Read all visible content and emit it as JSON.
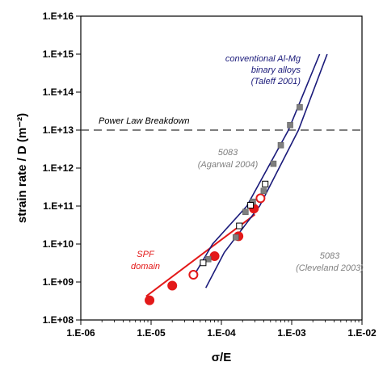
{
  "chart_data": {
    "type": "scatter",
    "title": "",
    "xlabel": "σ/E",
    "ylabel": "strain rate / D (m⁻²)",
    "x_scale": "log",
    "y_scale": "log",
    "xlim": [
      1e-06,
      0.01
    ],
    "ylim": [
      100000000.0,
      1e+16
    ],
    "x_ticks": [
      {
        "value": 1e-06,
        "label": "1.E-06"
      },
      {
        "value": 1e-05,
        "label": "1.E-05"
      },
      {
        "value": 0.0001,
        "label": "1.E-04"
      },
      {
        "value": 0.001,
        "label": "1.E-03"
      },
      {
        "value": 0.01,
        "label": "1.E-02"
      }
    ],
    "y_ticks": [
      {
        "value": 100000000.0,
        "label": "1.E+08"
      },
      {
        "value": 1000000000.0,
        "label": "1.E+09"
      },
      {
        "value": 10000000000.0,
        "label": "1.E+10"
      },
      {
        "value": 100000000000.0,
        "label": "1.E+11"
      },
      {
        "value": 1000000000000.0,
        "label": "1.E+12"
      },
      {
        "value": 10000000000000.0,
        "label": "1.E+13"
      },
      {
        "value": 100000000000000.0,
        "label": "1.E+14"
      },
      {
        "value": 1000000000000000.0,
        "label": "1.E+15"
      },
      {
        "value": 1e+16,
        "label": "1.E+16"
      }
    ],
    "grid": false,
    "colors": {
      "conventional": "#1a1a7a",
      "spf": "#e31919",
      "gray_points": "#7f7f7f",
      "breakdown": "#333333",
      "annotation_gray": "#808080"
    },
    "reference_line": {
      "label": "Power Law Breakdown",
      "y": 10000000000000.0
    },
    "series": [
      {
        "marker": "filled-circle",
        "color": "#e31919",
        "points": [
          {
            "x": 9.5e-06,
            "y": 330000000.0
          },
          {
            "x": 2e-05,
            "y": 800000000.0
          },
          {
            "x": 8e-05,
            "y": 4800000000.0
          },
          {
            "x": 0.000175,
            "y": 16000000000.0
          },
          {
            "x": 0.00029,
            "y": 86000000000.0
          }
        ]
      },
      {
        "marker": "open-circle",
        "color": "#e31919",
        "points": [
          {
            "x": 4e-05,
            "y": 1550000000.0
          },
          {
            "x": 0.00036,
            "y": 160000000000.0
          }
        ]
      },
      {
        "marker": "filled-square",
        "color": "#7f7f7f",
        "points": [
          {
            "x": 6.5e-05,
            "y": 4000000000.0
          },
          {
            "x": 0.00016,
            "y": 15000000000.0
          },
          {
            "x": 0.00022,
            "y": 70000000000.0
          },
          {
            "x": 0.00028,
            "y": 130000000000.0
          },
          {
            "x": 0.0004,
            "y": 250000000000.0
          },
          {
            "x": 0.00055,
            "y": 1300000000000.0
          },
          {
            "x": 0.0007,
            "y": 4000000000000.0
          },
          {
            "x": 0.00095,
            "y": 13500000000000.0
          },
          {
            "x": 0.0013,
            "y": 40000000000000.0
          }
        ]
      },
      {
        "marker": "open-square",
        "color": "#000000",
        "points": [
          {
            "x": 5.5e-05,
            "y": 3200000000.0
          },
          {
            "x": 0.00018,
            "y": 30000000000.0
          },
          {
            "x": 0.00026,
            "y": 105000000000.0
          },
          {
            "x": 0.00042,
            "y": 380000000000.0
          }
        ]
      }
    ],
    "fit_lines": [
      {
        "name": "SPF",
        "color": "#e31919",
        "points": [
          [
            8.5e-06,
            420000000.0
          ],
          [
            0.0003,
            60000000000.0
          ]
        ]
      },
      {
        "name": "conventional-left",
        "color": "#1a1a7a",
        "points": [
          [
            4e-05,
            1400000000.0
          ],
          [
            7.5e-05,
            10000000000.0
          ],
          [
            0.00023,
            100000000000.0
          ],
          [
            0.0009,
            10000000000000.0
          ],
          [
            0.0025,
            1000000000000000.0
          ]
        ]
      },
      {
        "name": "conventional-right",
        "color": "#1a1a7a",
        "points": [
          [
            6e-05,
            700000000.0
          ],
          [
            0.00011,
            6000000000.0
          ],
          [
            0.00035,
            100000000000.0
          ],
          [
            0.00125,
            10000000000000.0
          ],
          [
            0.0032,
            1000000000000000.0
          ]
        ]
      }
    ],
    "annotations": [
      {
        "lines": [
          "conventional Al-Mg",
          "binary alloys",
          "(Taleff 2001)"
        ],
        "color": "#1a1a7a",
        "anchor": "end"
      },
      {
        "lines": [
          "5083",
          "(Agarwal 2004)"
        ],
        "color": "#808080",
        "anchor": "middle"
      },
      {
        "lines": [
          "SPF",
          "domain"
        ],
        "color": "#e31919",
        "anchor": "middle"
      },
      {
        "lines": [
          "5083",
          "(Cleveland 2003)"
        ],
        "color": "#808080",
        "anchor": "middle"
      }
    ]
  }
}
